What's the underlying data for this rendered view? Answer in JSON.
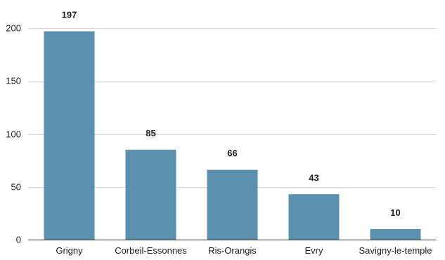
{
  "chart_data": {
    "type": "bar",
    "categories": [
      "Grigny",
      "Corbeil-Essonnes",
      "Ris-Orangis",
      "Evry",
      "Savigny-le-temple"
    ],
    "values": [
      197,
      85,
      66,
      43,
      10
    ],
    "data_labels": [
      "197",
      "85",
      "66",
      "43",
      "10"
    ],
    "yticks": [
      0,
      50,
      100,
      150,
      200
    ],
    "ylim": [
      0,
      200
    ],
    "title": "",
    "xlabel": "",
    "ylabel": "",
    "grid": true,
    "legend": "none",
    "colors": {
      "bar": "#5a90ae",
      "grid": "#d9d9d9",
      "text": "#222222"
    }
  }
}
